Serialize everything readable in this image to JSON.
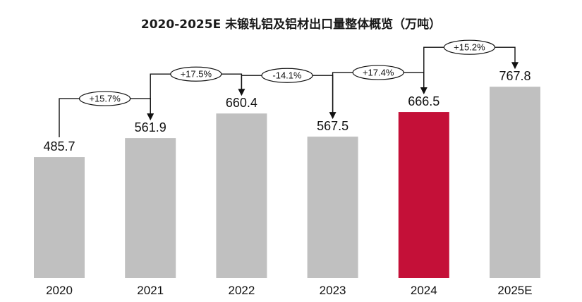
{
  "title": "2020-2025E 未锻轧铝及铝材出口量整体概览（万吨）",
  "colors": {
    "bar": "#c0c0c0",
    "highlight": "#c41038",
    "connector": "#111111"
  },
  "chart_data": {
    "type": "bar",
    "title": "2020-2025E 未锻轧铝及铝材出口量整体概览（万吨）",
    "categories": [
      "2020",
      "2021",
      "2022",
      "2023",
      "2024",
      "2025E"
    ],
    "values": [
      485.7,
      561.9,
      660.4,
      567.5,
      666.5,
      767.8
    ],
    "value_labels": [
      "485.7",
      "561.9",
      "660.4",
      "567.5",
      "666.5",
      "767.8"
    ],
    "highlight_index": 4,
    "growth_labels": [
      "+15.7%",
      "+17.5%",
      "-14.1%",
      "+17.4%",
      "+15.2%"
    ],
    "xlabel": "",
    "ylabel": "",
    "ylim": [
      0,
      800
    ],
    "grid": false,
    "legend": "none"
  }
}
